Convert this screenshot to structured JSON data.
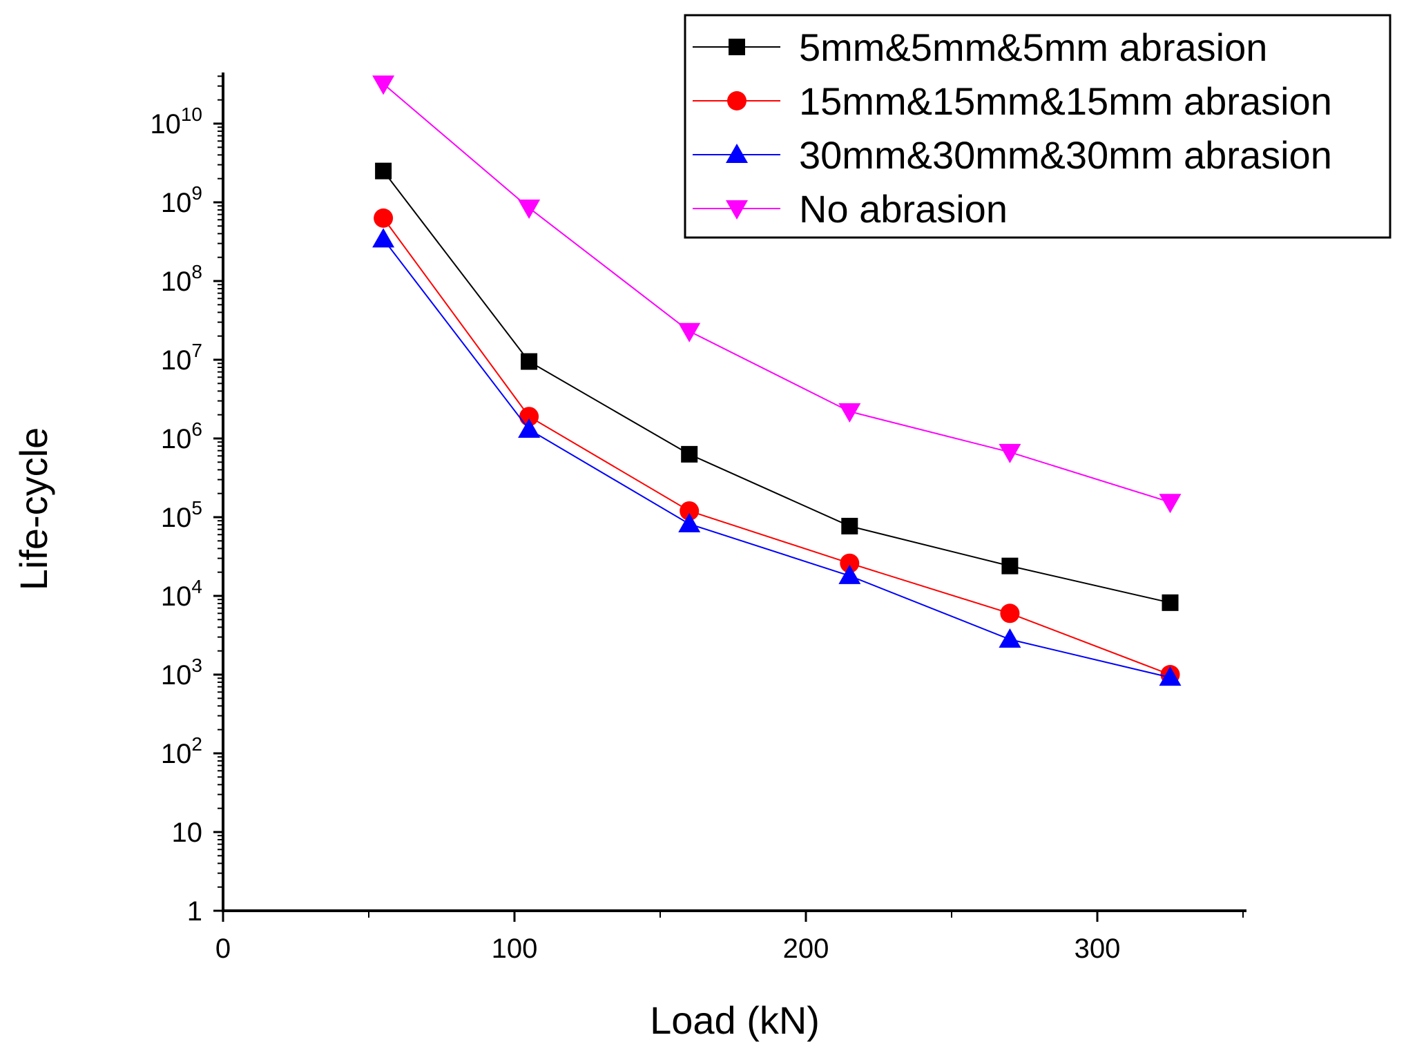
{
  "chart_data": {
    "type": "line",
    "title": "",
    "xlabel": "Load (kN)",
    "ylabel": "Life-cycle",
    "xlim": [
      0,
      350
    ],
    "ylim": [
      1,
      100000000000
    ],
    "yscale": "log",
    "grid": false,
    "legend_position": "top-right",
    "x_ticks": [
      {
        "value": 0,
        "label": "0"
      },
      {
        "value": 100,
        "label": "100"
      },
      {
        "value": 200,
        "label": "200"
      },
      {
        "value": 300,
        "label": "300"
      }
    ],
    "x_minor_ticks": [
      50,
      150,
      250,
      350
    ],
    "y_ticks": [
      {
        "exp": 0,
        "base": "1",
        "sup": ""
      },
      {
        "exp": 1,
        "base": "10",
        "sup": ""
      },
      {
        "exp": 2,
        "base": "10",
        "sup": "2"
      },
      {
        "exp": 3,
        "base": "10",
        "sup": "3"
      },
      {
        "exp": 4,
        "base": "10",
        "sup": "4"
      },
      {
        "exp": 5,
        "base": "10",
        "sup": "5"
      },
      {
        "exp": 6,
        "base": "10",
        "sup": "6"
      },
      {
        "exp": 7,
        "base": "10",
        "sup": "7"
      },
      {
        "exp": 8,
        "base": "10",
        "sup": "8"
      },
      {
        "exp": 9,
        "base": "10",
        "sup": "9"
      },
      {
        "exp": 10,
        "base": "10",
        "sup": "10"
      }
    ],
    "x": [
      55,
      105,
      160,
      215,
      270,
      325
    ],
    "series": [
      {
        "name": "5mm&5mm&5mm abrasion",
        "marker": "square",
        "line_color": "#000000",
        "marker_color": "#000000",
        "values": [
          2500000000,
          9500000,
          630000,
          77000,
          24000,
          8200
        ]
      },
      {
        "name": "15mm&15mm&15mm abrasion",
        "marker": "circle",
        "line_color": "#ff0000",
        "marker_color": "#ff0000",
        "values": [
          630000000,
          1900000,
          120000,
          26000,
          6000,
          1000
        ]
      },
      {
        "name": "30mm&30mm&30mm abrasion",
        "marker": "triangle-up",
        "line_color": "#0000ff",
        "marker_color": "#0000ff",
        "values": [
          340000000,
          1300000,
          82000,
          18000,
          2800,
          920
        ]
      },
      {
        "name": "No abrasion",
        "marker": "triangle-down",
        "line_color": "#ff00ff",
        "marker_color": "#ff00ff",
        "values": [
          32000000000,
          850000000,
          23000000,
          2200000,
          670000,
          155000
        ]
      }
    ]
  }
}
